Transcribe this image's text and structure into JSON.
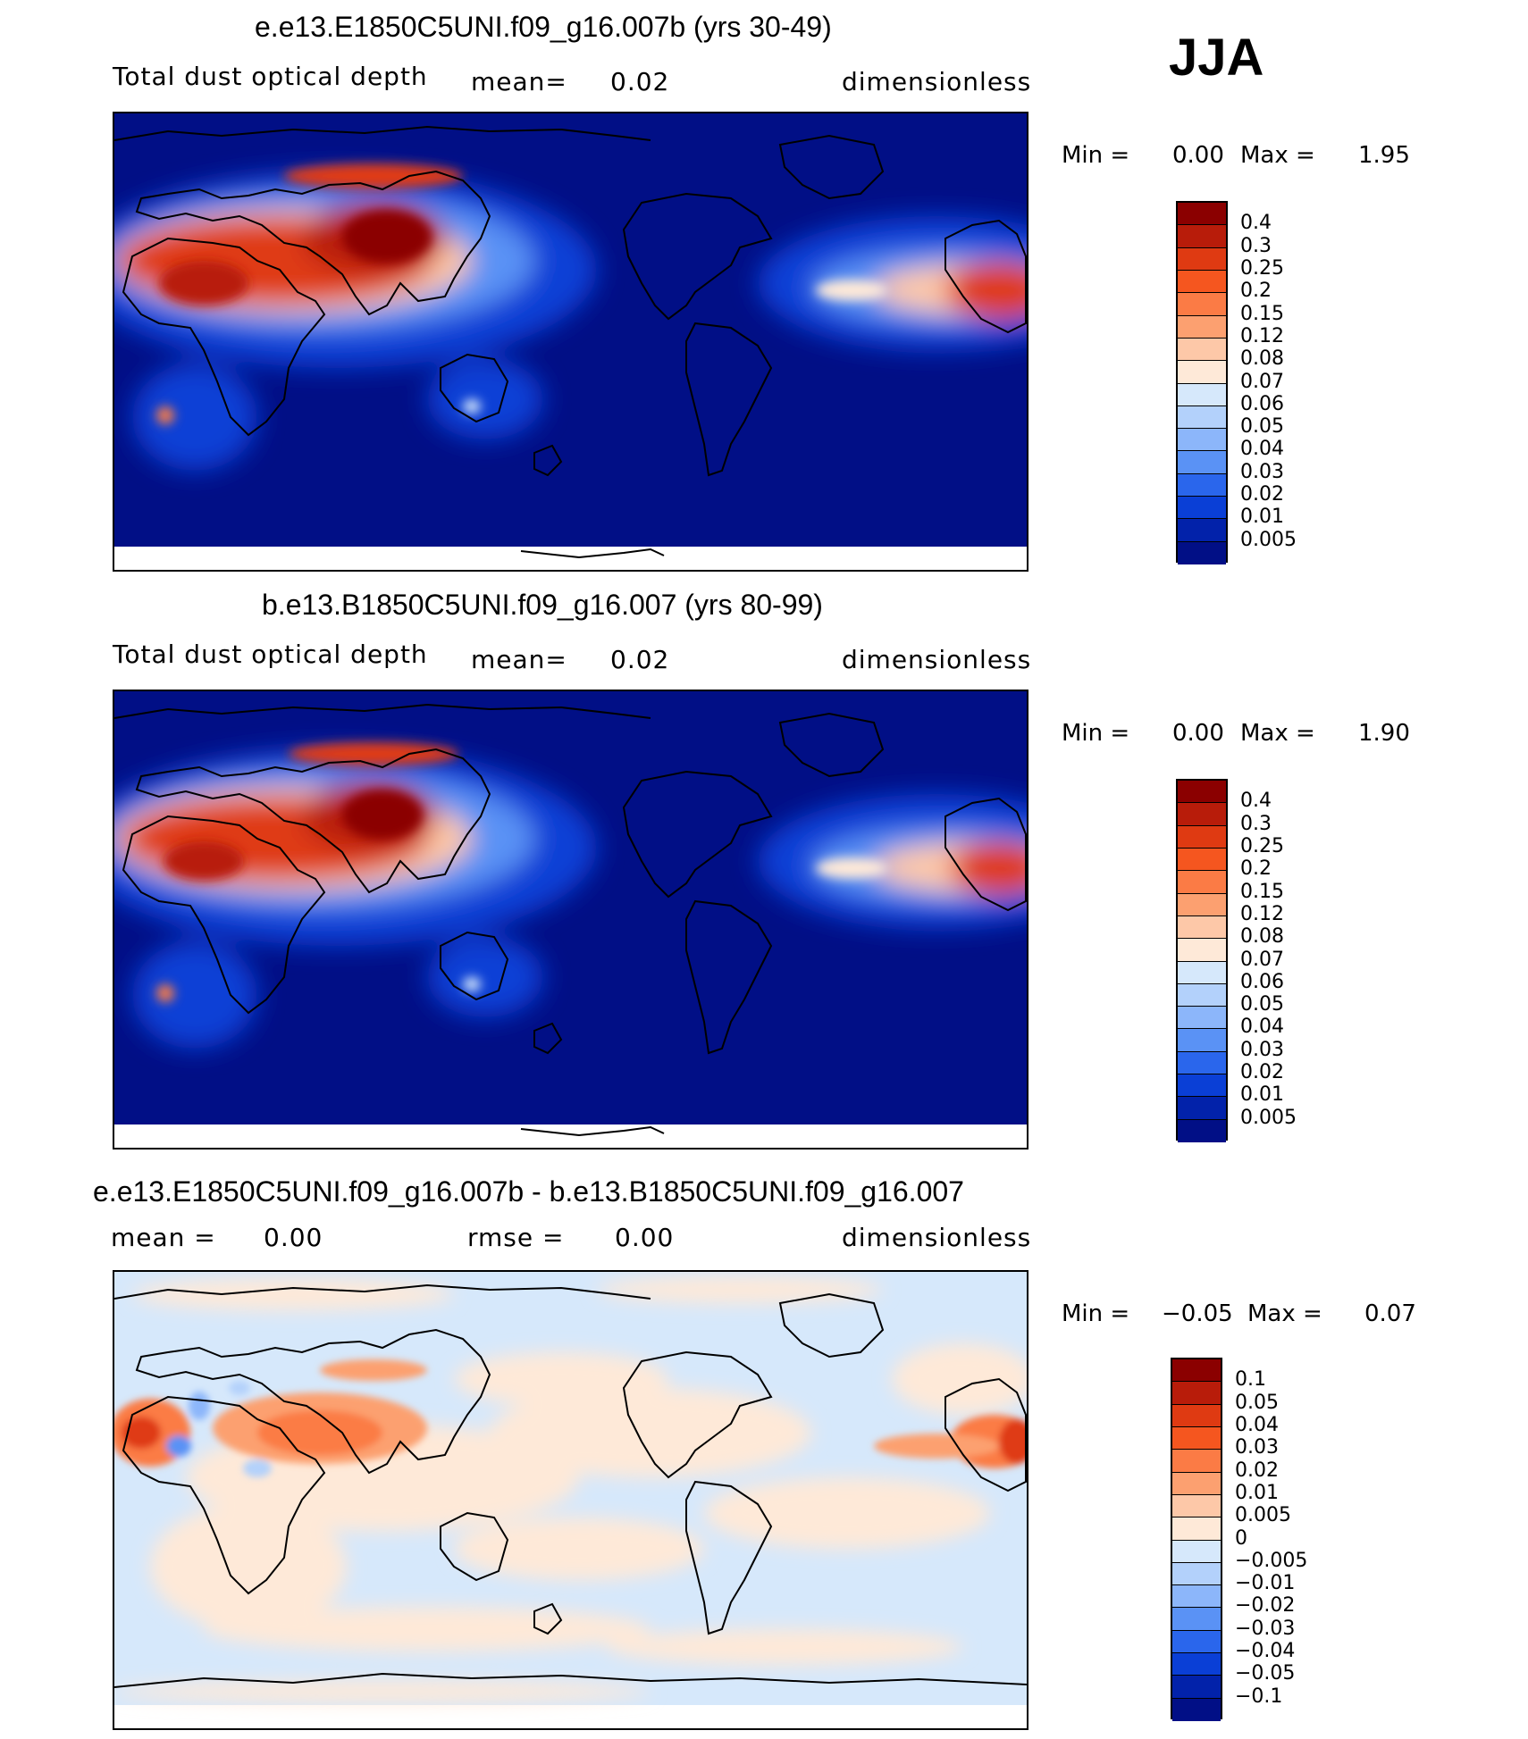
{
  "season": "JJA",
  "panels": [
    {
      "title": "e.e13.E1850C5UNI.f09_g16.007b (yrs 30-49)",
      "variable": "Total dust optical depth",
      "mean_label": "mean=",
      "mean_value": "0.02",
      "units": "dimensionless",
      "min_label": "Min  =",
      "min_value": "0.00",
      "max_label": "Max  =",
      "max_value": "1.95",
      "colorbar": {
        "levels": [
          "0.4",
          "0.3",
          "0.25",
          "0.2",
          "0.15",
          "0.12",
          "0.08",
          "0.07",
          "0.06",
          "0.05",
          "0.04",
          "0.03",
          "0.02",
          "0.01",
          "0.005"
        ],
        "colors": [
          "#8b0000",
          "#b81c0a",
          "#df3a12",
          "#f5561f",
          "#fb7b45",
          "#fca070",
          "#fdc8a8",
          "#fee9d8",
          "#d6e8fb",
          "#b3d1fb",
          "#8cb6fa",
          "#5a92f5",
          "#2a66ec",
          "#0a3fd6",
          "#0222aa",
          "#010f86"
        ]
      }
    },
    {
      "title": "b.e13.B1850C5UNI.f09_g16.007 (yrs 80-99)",
      "variable": "Total dust optical depth",
      "mean_label": "mean=",
      "mean_value": "0.02",
      "units": "dimensionless",
      "min_label": "Min  =",
      "min_value": "0.00",
      "max_label": "Max  =",
      "max_value": "1.90",
      "colorbar": {
        "levels": [
          "0.4",
          "0.3",
          "0.25",
          "0.2",
          "0.15",
          "0.12",
          "0.08",
          "0.07",
          "0.06",
          "0.05",
          "0.04",
          "0.03",
          "0.02",
          "0.01",
          "0.005"
        ],
        "colors": [
          "#8b0000",
          "#b81c0a",
          "#df3a12",
          "#f5561f",
          "#fb7b45",
          "#fca070",
          "#fdc8a8",
          "#fee9d8",
          "#d6e8fb",
          "#b3d1fb",
          "#8cb6fa",
          "#5a92f5",
          "#2a66ec",
          "#0a3fd6",
          "#0222aa",
          "#010f86"
        ]
      }
    },
    {
      "title": "e.e13.E1850C5UNI.f09_g16.007b - b.e13.B1850C5UNI.f09_g16.007",
      "mean_label": "mean  =",
      "mean_value": "0.00",
      "rmse_label": "rmse  =",
      "rmse_value": "0.00",
      "units": "dimensionless",
      "min_label": "Min  =",
      "min_value": "−0.05",
      "max_label": "Max  =",
      "max_value": "0.07",
      "colorbar": {
        "levels": [
          "0.1",
          "0.05",
          "0.04",
          "0.03",
          "0.02",
          "0.01",
          "0.005",
          "0",
          "−0.005",
          "−0.01",
          "−0.02",
          "−0.03",
          "−0.04",
          "−0.05",
          "−0.1"
        ],
        "colors": [
          "#8b0000",
          "#b81c0a",
          "#df3a12",
          "#f5561f",
          "#fb7b45",
          "#fca070",
          "#fdc8a8",
          "#fee9d8",
          "#d6e8fb",
          "#b3d1fb",
          "#8cb6fa",
          "#5a92f5",
          "#2a66ec",
          "#0a3fd6",
          "#0222aa",
          "#010f86"
        ]
      }
    }
  ]
}
